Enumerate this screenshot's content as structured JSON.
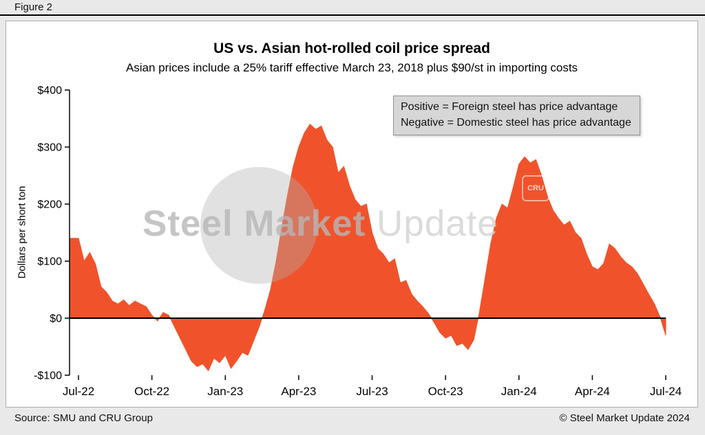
{
  "figure_label": "Figure 2",
  "legend": {
    "line1": "Positive = Foreign steel has price advantage",
    "line2": "Negative = Domestic steel has price advantage"
  },
  "footer": {
    "source": "Source: SMU and CRU Group",
    "copyright": "© Steel Market Update 2024"
  },
  "watermark": {
    "part1": "Steel Market",
    "part2": "Update",
    "badge": "CRU"
  },
  "colors": {
    "area": "#F0532B",
    "background": "#E9E9E9",
    "panel": "#FFFFFF",
    "legend_bg": "#D7D7D7"
  },
  "chart_data": {
    "type": "area",
    "title": "US vs. Asian hot-rolled coil price spread",
    "subtitle": "Asian prices include a 25% tariff effective March 23, 2018 plus $90/st in importing costs",
    "xlabel": "",
    "ylabel": "Dollars per short ton",
    "ylim": [
      -100,
      400
    ],
    "grid": false,
    "legend_position": "top-right",
    "y_ticks": [
      400,
      300,
      200,
      100,
      0,
      -100
    ],
    "y_ticklabels": [
      "$400",
      "$300",
      "$200",
      "$100",
      "$0",
      "-$100"
    ],
    "x_ticklabels": [
      "Jul-22",
      "Oct-22",
      "Jan-23",
      "Apr-23",
      "Jul-23",
      "Oct-23",
      "Jan-24",
      "Apr-24",
      "Jul-24"
    ],
    "x_tick_indices": [
      0,
      13,
      26,
      39,
      52,
      65,
      78,
      91,
      104
    ],
    "x_unit": "week",
    "values": [
      140,
      100,
      115,
      95,
      55,
      45,
      30,
      25,
      32,
      22,
      30,
      25,
      20,
      5,
      -5,
      10,
      5,
      -15,
      -35,
      -55,
      -75,
      -85,
      -80,
      -92,
      -70,
      -78,
      -65,
      -88,
      -75,
      -60,
      -65,
      -40,
      -15,
      15,
      50,
      100,
      160,
      215,
      265,
      300,
      325,
      340,
      331,
      337,
      312,
      300,
      255,
      266,
      232,
      208,
      196,
      200,
      150,
      122,
      112,
      97,
      104,
      62,
      66,
      42,
      30,
      20,
      8,
      -8,
      -25,
      -35,
      -30,
      -48,
      -44,
      -55,
      -38,
      10,
      70,
      130,
      175,
      200,
      193,
      230,
      270,
      283,
      272,
      278,
      250,
      215,
      190,
      175,
      163,
      170,
      150,
      140,
      112,
      90,
      85,
      96,
      130,
      122,
      108,
      97,
      90,
      78,
      60,
      42,
      25,
      2,
      -30
    ]
  }
}
